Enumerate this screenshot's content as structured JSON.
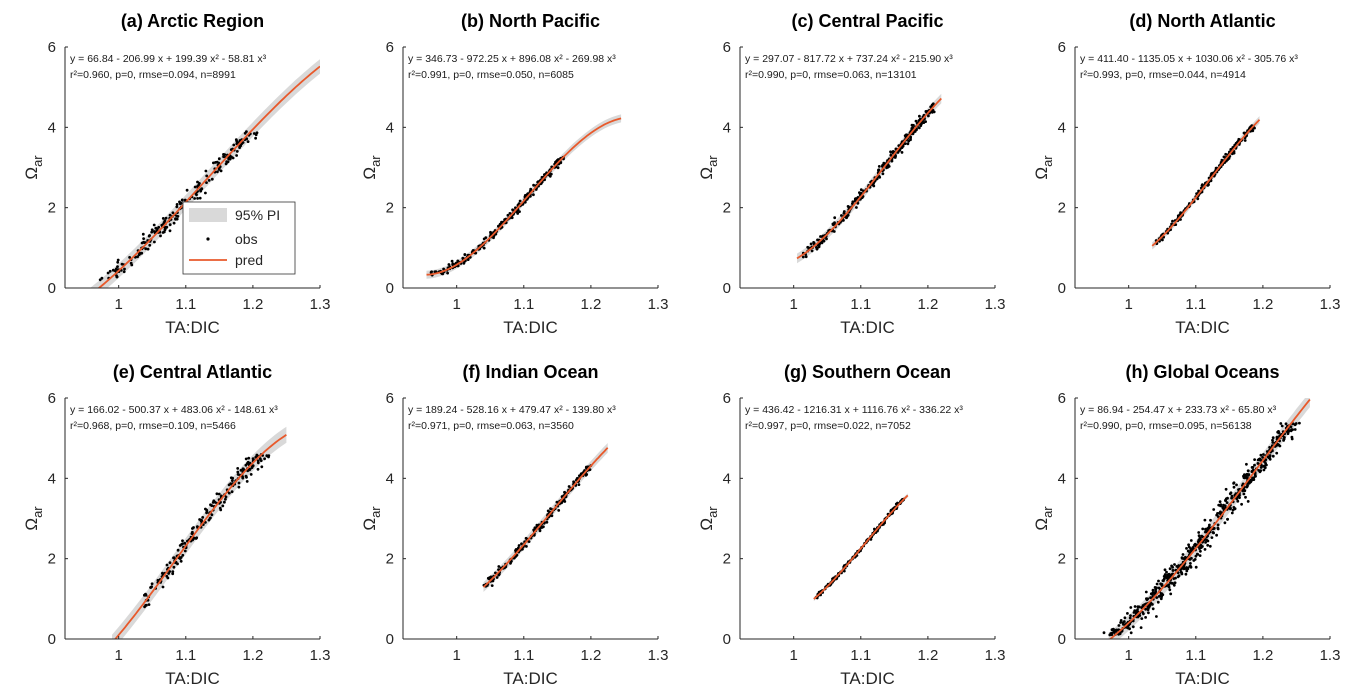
{
  "figure": {
    "colors": {
      "obs": "#000000",
      "pred": "#e8592b",
      "pi": "#d9d9d9",
      "axis": "#262626"
    },
    "legend": {
      "location": "panel-a lower-right",
      "entries": [
        "95% PI",
        "obs",
        "pred"
      ]
    }
  },
  "chart_data": [
    {
      "id": "a",
      "type": "scatter",
      "title": "(a) Arctic Region",
      "xlabel": "TA:DIC",
      "ylabel": "Ω",
      "ylabel_sub": "ar",
      "xlim": [
        0.92,
        1.3
      ],
      "ylim": [
        0,
        6
      ],
      "xticks": [
        "1",
        "1.1",
        "1.2",
        "1.3"
      ],
      "yticks": [
        "0",
        "2",
        "4",
        "6"
      ],
      "equation": "y = 66.84 - 206.99 x + 199.39 x² - 58.81 x³",
      "stats": "r²=0.960, p=0, rmse=0.094, n=8991",
      "coef": [
        66.84,
        -206.99,
        199.39,
        -58.81
      ],
      "fit_range": [
        0.94,
        1.3
      ],
      "pi_halfwidth": 0.18,
      "obs": {
        "x_range": [
          0.94,
          1.26
        ],
        "y_range": [
          0.15,
          3.9
        ],
        "count_shown": 320,
        "spread": 0.12
      }
    },
    {
      "id": "b",
      "type": "scatter",
      "title": "(b) North Pacific",
      "xlabel": "TA:DIC",
      "ylabel": "Ω",
      "ylabel_sub": "ar",
      "xlim": [
        0.92,
        1.3
      ],
      "ylim": [
        0,
        6
      ],
      "xticks": [
        "1",
        "1.1",
        "1.2",
        "1.3"
      ],
      "yticks": [
        "0",
        "2",
        "4",
        "6"
      ],
      "equation": "y = 346.73 - 972.25 x + 896.08 x² - 269.98 x³",
      "stats": "r²=0.991, p=0, rmse=0.050, n=6085",
      "coef": [
        346.73,
        -972.25,
        896.08,
        -269.98
      ],
      "fit_range": [
        0.955,
        1.245
      ],
      "pi_halfwidth": 0.1,
      "obs": {
        "x_range": [
          0.96,
          1.16
        ],
        "y_range": [
          0.3,
          3.3
        ],
        "count_shown": 260,
        "spread": 0.05
      }
    },
    {
      "id": "c",
      "type": "scatter",
      "title": "(c) Central Pacific",
      "xlabel": "TA:DIC",
      "ylabel": "Ω",
      "ylabel_sub": "ar",
      "xlim": [
        0.92,
        1.3
      ],
      "ylim": [
        0,
        6
      ],
      "xticks": [
        "1",
        "1.1",
        "1.2",
        "1.3"
      ],
      "yticks": [
        "0",
        "2",
        "4",
        "6"
      ],
      "equation": "y = 297.07 - 817.72 x + 737.24 x² - 215.90 x³",
      "stats": "r²=0.990, p=0, rmse=0.063, n=13101",
      "coef": [
        297.07,
        -817.72,
        737.24,
        -215.9
      ],
      "fit_range": [
        1.005,
        1.22
      ],
      "pi_halfwidth": 0.12,
      "obs": {
        "x_range": [
          1.01,
          1.21
        ],
        "y_range": [
          0.7,
          4.6
        ],
        "count_shown": 320,
        "spread": 0.07
      }
    },
    {
      "id": "d",
      "type": "scatter",
      "title": "(d) North Atlantic",
      "xlabel": "TA:DIC",
      "ylabel": "Ω",
      "ylabel_sub": "ar",
      "xlim": [
        0.92,
        1.3
      ],
      "ylim": [
        0,
        6
      ],
      "xticks": [
        "1",
        "1.1",
        "1.2",
        "1.3"
      ],
      "yticks": [
        "0",
        "2",
        "4",
        "6"
      ],
      "equation": "y = 411.40 - 1135.05 x + 1030.06 x² - 305.76 x³",
      "stats": "r²=0.993, p=0, rmse=0.044, n=4914",
      "coef": [
        411.4,
        -1135.05,
        1030.06,
        -305.76
      ],
      "fit_range": [
        1.035,
        1.195
      ],
      "pi_halfwidth": 0.09,
      "obs": {
        "x_range": [
          1.04,
          1.19
        ],
        "y_range": [
          1.05,
          4.05
        ],
        "count_shown": 220,
        "spread": 0.05
      }
    },
    {
      "id": "e",
      "type": "scatter",
      "title": "(e) Central Atlantic",
      "xlabel": "TA:DIC",
      "ylabel": "Ω",
      "ylabel_sub": "ar",
      "xlim": [
        0.92,
        1.3
      ],
      "ylim": [
        0,
        6
      ],
      "xticks": [
        "1",
        "1.1",
        "1.2",
        "1.3"
      ],
      "yticks": [
        "0",
        "2",
        "4",
        "6"
      ],
      "equation": "y = 166.02 - 500.37 x + 483.06 x² - 148.61 x³",
      "stats": "r²=0.968, p=0, rmse=0.109, n=5466",
      "coef": [
        166.02,
        -500.37,
        483.06,
        -148.61
      ],
      "fit_range": [
        0.99,
        1.25
      ],
      "pi_halfwidth": 0.2,
      "obs": {
        "x_range": [
          1.02,
          1.25
        ],
        "y_range": [
          0.8,
          4.6
        ],
        "count_shown": 260,
        "spread": 0.12
      }
    },
    {
      "id": "f",
      "type": "scatter",
      "title": "(f) Indian Ocean",
      "xlabel": "TA:DIC",
      "ylabel": "Ω",
      "ylabel_sub": "ar",
      "xlim": [
        0.92,
        1.3
      ],
      "ylim": [
        0,
        6
      ],
      "xticks": [
        "1",
        "1.1",
        "1.2",
        "1.3"
      ],
      "yticks": [
        "0",
        "2",
        "4",
        "6"
      ],
      "equation": "y = 189.24 - 528.16 x + 479.47 x² - 139.80 x³",
      "stats": "r²=0.971, p=0, rmse=0.063, n=3560",
      "coef": [
        189.24,
        -528.16,
        479.47,
        -139.8
      ],
      "fit_range": [
        1.04,
        1.225
      ],
      "pi_halfwidth": 0.12,
      "obs": {
        "x_range": [
          1.04,
          1.2
        ],
        "y_range": [
          1.3,
          4.4
        ],
        "count_shown": 200,
        "spread": 0.06
      }
    },
    {
      "id": "g",
      "type": "scatter",
      "title": "(g) Southern Ocean",
      "xlabel": "TA:DIC",
      "ylabel": "Ω",
      "ylabel_sub": "ar",
      "xlim": [
        0.92,
        1.3
      ],
      "ylim": [
        0,
        6
      ],
      "xticks": [
        "1",
        "1.1",
        "1.2",
        "1.3"
      ],
      "yticks": [
        "0",
        "2",
        "4",
        "6"
      ],
      "equation": "y = 436.42 - 1216.31 x + 1116.76 x² - 336.22 x³",
      "stats": "r²=0.997, p=0, rmse=0.022, n=7052",
      "coef": [
        436.42,
        -1216.31,
        1116.76,
        -336.22
      ],
      "fit_range": [
        1.03,
        1.17
      ],
      "pi_halfwidth": 0.05,
      "obs": {
        "x_range": [
          1.03,
          1.165
        ],
        "y_range": [
          1.0,
          3.6
        ],
        "count_shown": 180,
        "spread": 0.03
      }
    },
    {
      "id": "h",
      "type": "scatter",
      "title": "(h) Global Oceans",
      "xlabel": "TA:DIC",
      "ylabel": "Ω",
      "ylabel_sub": "ar",
      "xlim": [
        0.92,
        1.3
      ],
      "ylim": [
        0,
        6
      ],
      "xticks": [
        "1",
        "1.1",
        "1.2",
        "1.3"
      ],
      "yticks": [
        "0",
        "2",
        "4",
        "6"
      ],
      "equation": "y = 86.94 - 254.47 x + 233.73 x² - 65.80 x³",
      "stats": "r²=0.990, p=0, rmse=0.095, n=56138",
      "coef": [
        86.94,
        -254.47,
        233.73,
        -65.8
      ],
      "fit_range": [
        0.97,
        1.27
      ],
      "pi_halfwidth": 0.19,
      "obs": {
        "x_range": [
          0.94,
          1.26
        ],
        "y_range": [
          0.1,
          5.4
        ],
        "count_shown": 700,
        "spread": 0.16
      }
    }
  ]
}
